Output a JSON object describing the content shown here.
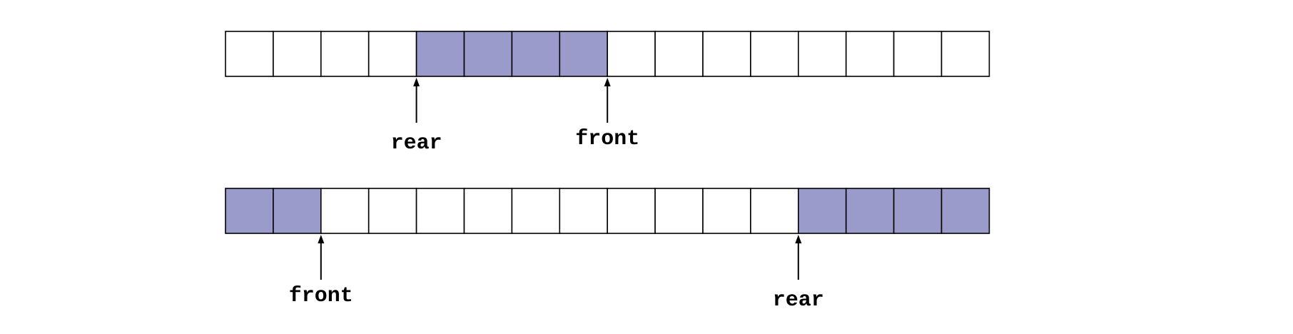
{
  "colors": {
    "filled": "#9b9bcb",
    "empty": "#ffffff",
    "border": "#000000"
  },
  "queues": [
    {
      "name": "queue-array-top",
      "cell_count": 16,
      "filled_indices": [
        4,
        5,
        6,
        7
      ],
      "pointers": [
        {
          "label": "rear",
          "index": 4
        },
        {
          "label": "front",
          "index": 8
        }
      ]
    },
    {
      "name": "queue-array-bottom",
      "cell_count": 16,
      "filled_indices": [
        0,
        1,
        12,
        13,
        14,
        15
      ],
      "pointers": [
        {
          "label": "front",
          "index": 2
        },
        {
          "label": "rear",
          "index": 12
        }
      ]
    }
  ]
}
